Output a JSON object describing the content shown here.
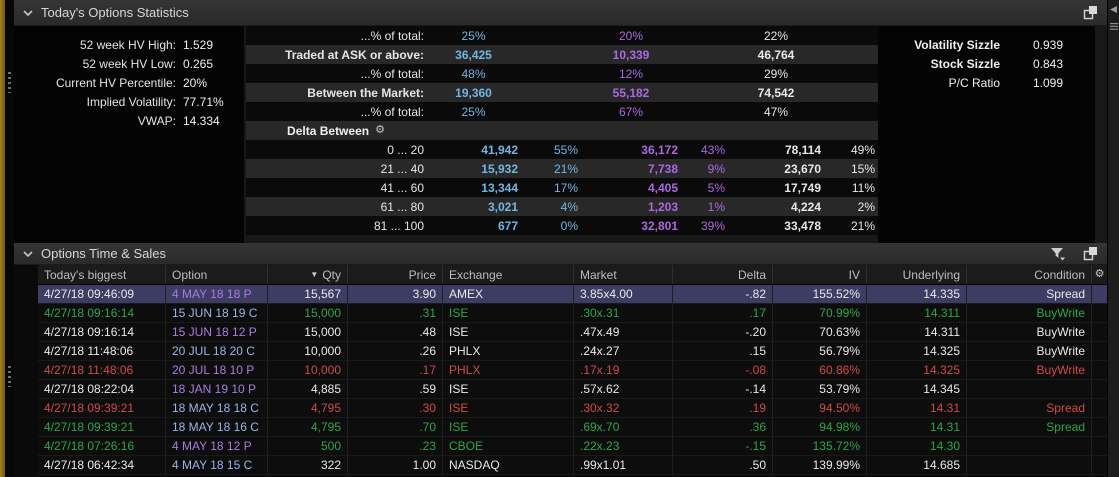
{
  "colors": {
    "blue": "#72b6e4",
    "purple": "#ab68e0",
    "green": "#27a948",
    "red": "#cf4a44",
    "call": "#96b7e6",
    "put": "#a97ce0",
    "selected_row": "#3d3d63",
    "gold_edge": "#8d6b16"
  },
  "icons": {
    "gear": "⚙",
    "sort_down": "▼"
  },
  "panels": {
    "stats": {
      "title": "Today's Options Statistics",
      "left_stats": [
        {
          "label": "52 week HV High:",
          "value": "1.529"
        },
        {
          "label": "52 week HV Low:",
          "value": "0.265"
        },
        {
          "label": "Current HV Percentile:",
          "value": "20%"
        },
        {
          "label": "Implied Volatility:",
          "value": "77.71%"
        },
        {
          "label": "VWAP:",
          "value": "14.334"
        }
      ],
      "flow_rows": [
        {
          "label": "...% of total:",
          "bold": false,
          "values": [
            "25%",
            "20%",
            "22%"
          ]
        },
        {
          "label": "Traded at ASK or above:",
          "bold": true,
          "values": [
            "36,425",
            "10,339",
            "46,764"
          ]
        },
        {
          "label": "...% of total:",
          "bold": false,
          "values": [
            "48%",
            "12%",
            "29%"
          ]
        },
        {
          "label": "Between the Market:",
          "bold": true,
          "values": [
            "19,360",
            "55,182",
            "74,542"
          ]
        },
        {
          "label": "...% of total:",
          "bold": false,
          "values": [
            "25%",
            "67%",
            "47%"
          ]
        }
      ],
      "delta_header": {
        "label": "Delta Between"
      },
      "delta_rows": [
        {
          "range": "0 ... 20",
          "calls": "41,942",
          "calls_pct": "55%",
          "puts": "36,172",
          "puts_pct": "43%",
          "total": "78,114",
          "total_pct": "49%"
        },
        {
          "range": "21 ... 40",
          "calls": "15,932",
          "calls_pct": "21%",
          "puts": "7,738",
          "puts_pct": "9%",
          "total": "23,670",
          "total_pct": "15%"
        },
        {
          "range": "41 ... 60",
          "calls": "13,344",
          "calls_pct": "17%",
          "puts": "4,405",
          "puts_pct": "5%",
          "total": "17,749",
          "total_pct": "11%"
        },
        {
          "range": "61 ... 80",
          "calls": "3,021",
          "calls_pct": "4%",
          "puts": "1,203",
          "puts_pct": "1%",
          "total": "4,224",
          "total_pct": "2%"
        },
        {
          "range": "81 ... 100",
          "calls": "677",
          "calls_pct": "0%",
          "puts": "32,801",
          "puts_pct": "39%",
          "total": "33,478",
          "total_pct": "21%"
        }
      ],
      "right_stats": [
        {
          "label": "Volatility Sizzle",
          "value": "0.939",
          "bold": true
        },
        {
          "label": "Stock Sizzle",
          "value": "0.843",
          "bold": true
        },
        {
          "label": "P/C Ratio",
          "value": "1.099",
          "bold": false
        }
      ]
    },
    "time_sales": {
      "title": "Options Time & Sales",
      "sort_indicator": "▼",
      "columns": [
        "Today's biggest",
        "Option",
        "Qty",
        "Price",
        "Exchange",
        "Market",
        "Delta",
        "IV",
        "Underlying",
        "Condition"
      ],
      "rows": [
        {
          "time": "4/27/18 09:46:09",
          "option": "4 MAY 18 18 P",
          "option_type": "put",
          "qty": "15,567",
          "price": "3.90",
          "exchange": "AMEX",
          "market": "3.85x4.00",
          "delta": "-.82",
          "iv": "155.52%",
          "underlying": "14.335",
          "condition": "Spread",
          "tone": "white",
          "selected": true
        },
        {
          "time": "4/27/18 09:16:14",
          "option": "15 JUN 18 19 C",
          "option_type": "call",
          "qty": "15,000",
          "price": ".31",
          "exchange": "ISE",
          "market": ".30x.31",
          "delta": ".17",
          "iv": "70.99%",
          "underlying": "14.311",
          "condition": "BuyWrite",
          "tone": "green",
          "selected": false
        },
        {
          "time": "4/27/18 09:16:14",
          "option": "15 JUN 18 12 P",
          "option_type": "put",
          "qty": "15,000",
          "price": ".48",
          "exchange": "ISE",
          "market": ".47x.49",
          "delta": "-.20",
          "iv": "70.63%",
          "underlying": "14.311",
          "condition": "BuyWrite",
          "tone": "white",
          "selected": false
        },
        {
          "time": "4/27/18 11:48:06",
          "option": "20 JUL 18 20 C",
          "option_type": "call",
          "qty": "10,000",
          "price": ".26",
          "exchange": "PHLX",
          "market": ".24x.27",
          "delta": ".15",
          "iv": "56.79%",
          "underlying": "14.325",
          "condition": "BuyWrite",
          "tone": "white",
          "selected": false
        },
        {
          "time": "4/27/18 11:48:06",
          "option": "20 JUL 18 10 P",
          "option_type": "put",
          "qty": "10,000",
          "price": ".17",
          "exchange": "PHLX",
          "market": ".17x.19",
          "delta": "-.08",
          "iv": "60.86%",
          "underlying": "14.325",
          "condition": "BuyWrite",
          "tone": "red",
          "selected": false
        },
        {
          "time": "4/27/18 08:22:04",
          "option": "18 JAN 19 10 P",
          "option_type": "put",
          "qty": "4,885",
          "price": ".59",
          "exchange": "ISE",
          "market": ".57x.62",
          "delta": "-.14",
          "iv": "53.79%",
          "underlying": "14.345",
          "condition": "",
          "tone": "white",
          "selected": false
        },
        {
          "time": "4/27/18 09:39:21",
          "option": "18 MAY 18 18 C",
          "option_type": "call",
          "qty": "4,795",
          "price": ".30",
          "exchange": "ISE",
          "market": ".30x.32",
          "delta": ".19",
          "iv": "94.50%",
          "underlying": "14.31",
          "condition": "Spread",
          "tone": "red",
          "selected": false
        },
        {
          "time": "4/27/18 09:39:21",
          "option": "18 MAY 18 16 C",
          "option_type": "call",
          "qty": "4,795",
          "price": ".70",
          "exchange": "ISE",
          "market": ".69x.70",
          "delta": ".36",
          "iv": "94.98%",
          "underlying": "14.31",
          "condition": "Spread",
          "tone": "green",
          "selected": false
        },
        {
          "time": "4/27/18 07:26:16",
          "option": "4 MAY 18 12 P",
          "option_type": "put",
          "qty": "500",
          "price": ".23",
          "exchange": "CBOE",
          "market": ".22x.23",
          "delta": "-.15",
          "iv": "135.72%",
          "underlying": "14.30",
          "condition": "",
          "tone": "green",
          "selected": false
        },
        {
          "time": "4/27/18 06:42:34",
          "option": "4 MAY 18 15 C",
          "option_type": "call",
          "qty": "322",
          "price": "1.00",
          "exchange": "NASDAQ",
          "market": ".99x1.01",
          "delta": ".50",
          "iv": "139.99%",
          "underlying": "14.685",
          "condition": "",
          "tone": "white",
          "selected": false
        }
      ]
    }
  }
}
